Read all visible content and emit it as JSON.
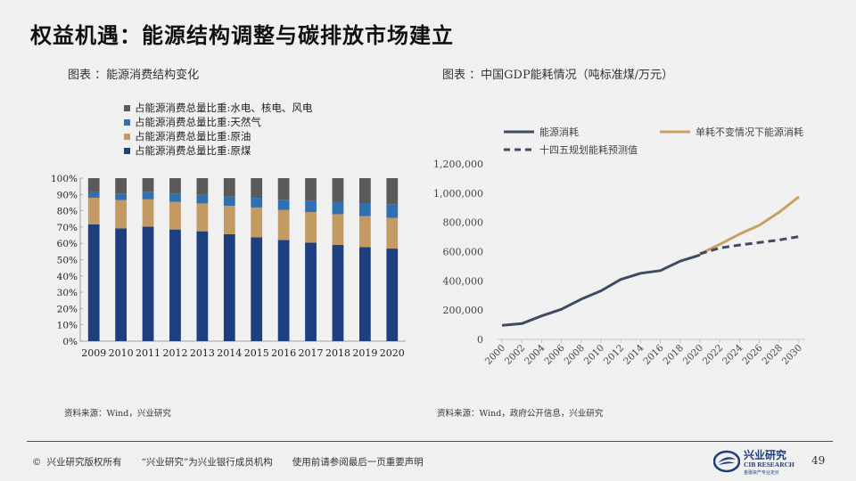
{
  "slide": {
    "title": "权益机遇：能源结构调整与碳排放市场建立",
    "page_number": "49"
  },
  "left_panel": {
    "subtitle": "图表 ：能源消费结构变化",
    "source": "资料来源：Wind，兴业研究"
  },
  "right_panel": {
    "subtitle": "图表 ：中国GDP能耗情况（吨标准煤/万元）",
    "source": "资料来源：Wind，政府公开信息，兴业研究"
  },
  "footer": {
    "copyright_symbol": "©",
    "copyright": "兴业研究版权所有",
    "notice": "“兴业研究”为兴业银行成员机构",
    "disclaimer": "使用前请参阅最后一页重要声明",
    "logo_name": "兴业研究",
    "logo_en": "CIB RESEARCH",
    "logo_tag": "金融资产专业定价"
  },
  "colors": {
    "coal": "#1d3f7f",
    "oil": "#c39a62",
    "gas": "#2f6fb2",
    "clean": "#5a5a5a",
    "line_actual": "#3f4b63",
    "line_flat": "#c9a063",
    "line_plan": "#3f4b63"
  },
  "chart_data": [
    {
      "type": "bar",
      "stacked": true,
      "title": "",
      "categories": [
        "2009",
        "2010",
        "2011",
        "2012",
        "2013",
        "2014",
        "2015",
        "2016",
        "2017",
        "2018",
        "2019",
        "2020"
      ],
      "series": [
        {
          "name": "占能源消费总量比重:原煤",
          "values": [
            71.6,
            69.2,
            70.2,
            68.5,
            67.4,
            65.6,
            63.7,
            62.0,
            60.4,
            59.0,
            57.7,
            56.8
          ]
        },
        {
          "name": "占能源消费总量比重:原油",
          "values": [
            16.4,
            17.4,
            16.8,
            17.0,
            17.1,
            17.4,
            18.3,
            18.5,
            18.8,
            18.9,
            19.0,
            18.9
          ]
        },
        {
          "name": "占能源消费总量比重:天然气",
          "values": [
            3.5,
            4.0,
            4.6,
            4.8,
            5.3,
            5.7,
            5.9,
            6.2,
            7.0,
            7.6,
            8.0,
            8.4
          ]
        },
        {
          "name": "占能源消费总量比重:水电、核电、风电",
          "values": [
            8.5,
            9.4,
            8.4,
            9.7,
            10.2,
            11.3,
            12.1,
            13.3,
            13.8,
            14.5,
            15.3,
            15.9
          ]
        }
      ],
      "ylim": [
        0,
        100
      ],
      "yticks": [
        "0%",
        "10%",
        "20%",
        "30%",
        "40%",
        "50%",
        "60%",
        "70%",
        "80%",
        "90%",
        "100%"
      ],
      "xlabel": "",
      "ylabel": "",
      "legend": "top-left",
      "grid": false
    },
    {
      "type": "line",
      "title": "",
      "x_ticks": [
        "2000",
        "2002",
        "2004",
        "2006",
        "2008",
        "2010",
        "2012",
        "2014",
        "2016",
        "2018",
        "2020",
        "2022",
        "2024",
        "2026",
        "2028",
        "2030"
      ],
      "series": [
        {
          "name": "能源消耗",
          "style": "solid",
          "x": [
            2000,
            2002,
            2004,
            2006,
            2008,
            2010,
            2012,
            2014,
            2016,
            2018,
            2020
          ],
          "y": [
            96000,
            108000,
            160000,
            206000,
            275000,
            332000,
            410000,
            452000,
            470000,
            535000,
            577000
          ]
        },
        {
          "name": "单耗不变情况下能源消耗",
          "style": "solid",
          "x": [
            2020,
            2022,
            2024,
            2026,
            2028,
            2030
          ],
          "y": [
            585000,
            650000,
            720000,
            780000,
            870000,
            975000
          ]
        },
        {
          "name": "十四五规划能耗预测值",
          "style": "dashed",
          "x": [
            2020,
            2022,
            2024,
            2026,
            2028,
            2030
          ],
          "y": [
            585000,
            625000,
            645000,
            662000,
            680000,
            703000
          ]
        }
      ],
      "ylim": [
        0,
        1200000
      ],
      "yticks": [
        "0",
        "200,000",
        "400,000",
        "600,000",
        "800,000",
        "1,000,000",
        "1,200,000"
      ],
      "xlabel": "",
      "ylabel": "",
      "legend": "top",
      "grid": false
    }
  ]
}
